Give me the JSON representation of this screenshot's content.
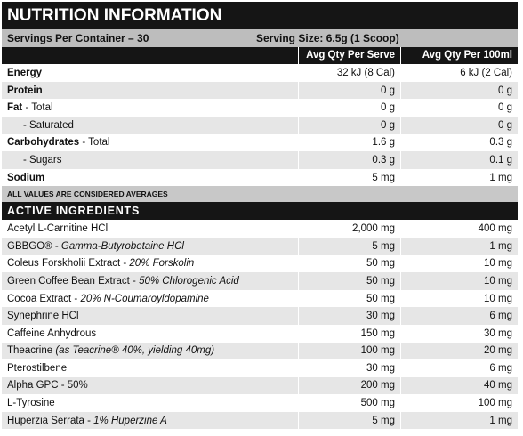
{
  "header": {
    "title": "NUTRITION INFORMATION",
    "servings": "Servings Per Container – 30",
    "serving_size": "Serving Size: 6.5g (1 Scoop)"
  },
  "columns": [
    "Avg Qty Per Serve",
    "Avg Qty Per 100ml"
  ],
  "nutrition": [
    {
      "name": "Energy",
      "values": [
        "32 kJ (8 Cal)",
        "6 kJ (2 Cal)"
      ]
    },
    {
      "name": "Protein",
      "values": [
        "0 g",
        "0 g"
      ]
    },
    {
      "name": "Fat",
      "sub": " - Total",
      "values": [
        "0 g",
        "0 g"
      ]
    },
    {
      "sub": "- Saturated",
      "values": [
        "0 g",
        "0 g"
      ]
    },
    {
      "name": "Carbohydrates",
      "sub": " - Total",
      "values": [
        "1.6 g",
        "0.3 g"
      ]
    },
    {
      "sub": "- Sugars",
      "values": [
        "0.3 g",
        "0.1 g"
      ]
    },
    {
      "name": "Sodium",
      "values": [
        "5 mg",
        "1 mg"
      ]
    }
  ],
  "note": "ALL VALUES ARE CONSIDERED AVERAGES",
  "active_title": "ACTIVE INGREDIENTS",
  "ingredients": [
    {
      "name": "Acetyl L-Carnitine HCl",
      "values": [
        "2,000 mg",
        "400 mg"
      ]
    },
    {
      "name": "GBBGO® - ",
      "detail": "Gamma-Butyrobetaine HCl",
      "values": [
        "5 mg",
        "1 mg"
      ]
    },
    {
      "name": "Coleus Forskholii Extract - ",
      "detail": "20% Forskolin",
      "values": [
        "50 mg",
        "10 mg"
      ]
    },
    {
      "name": "Green Coffee Bean Extract - ",
      "detail": "50% Chlorogenic Acid",
      "values": [
        "50 mg",
        "10 mg"
      ]
    },
    {
      "name": "Cocoa Extract - ",
      "detail": "20% N-Coumaroyldopamine",
      "values": [
        "50 mg",
        "10 mg"
      ]
    },
    {
      "name": "Synephrine HCl",
      "values": [
        "30 mg",
        "6 mg"
      ]
    },
    {
      "name": "Caffeine Anhydrous",
      "values": [
        "150 mg",
        "30 mg"
      ]
    },
    {
      "name": "Theacrine ",
      "detail": "(as Teacrine® 40%, yielding 40mg)",
      "values": [
        "100 mg",
        "20 mg"
      ]
    },
    {
      "name": "Pterostilbene",
      "values": [
        "30 mg",
        "6 mg"
      ]
    },
    {
      "name": "Alpha GPC - 50%",
      "values": [
        "200 mg",
        "40 mg"
      ]
    },
    {
      "name": "L-Tyrosine",
      "values": [
        "500 mg",
        "100 mg"
      ]
    },
    {
      "name": "Huperzia Serrata - ",
      "detail": "1% Huperzine A",
      "values": [
        "5 mg",
        "1 mg"
      ]
    }
  ]
}
